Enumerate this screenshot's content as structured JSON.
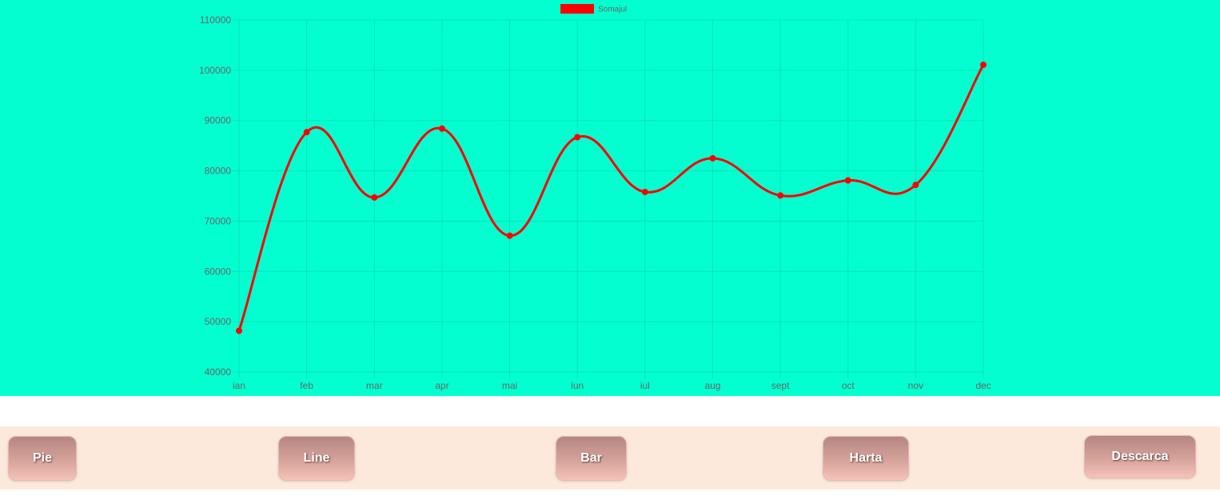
{
  "chart_data": {
    "type": "line",
    "categories": [
      "ian",
      "feb",
      "mar",
      "apr",
      "mai",
      "iun",
      "iul",
      "aug",
      "sept",
      "oct",
      "nov",
      "dec"
    ],
    "series": [
      {
        "name": "Somajul",
        "values": [
          48200,
          87700,
          74700,
          88400,
          67100,
          86700,
          75800,
          82500,
          75100,
          78100,
          77200,
          101100
        ],
        "color": "#ff0000"
      }
    ],
    "ylim": [
      40000,
      110000
    ],
    "yticks": [
      "40000",
      "50000",
      "60000",
      "70000",
      "80000",
      "90000",
      "100000",
      "110000"
    ],
    "grid": true,
    "legend": "top-center",
    "background": "#03ffd0"
  },
  "buttons": {
    "pie": "Pie",
    "line": "Line",
    "bar": "Bar",
    "harta": "Harta",
    "descarca": "Descarca"
  }
}
